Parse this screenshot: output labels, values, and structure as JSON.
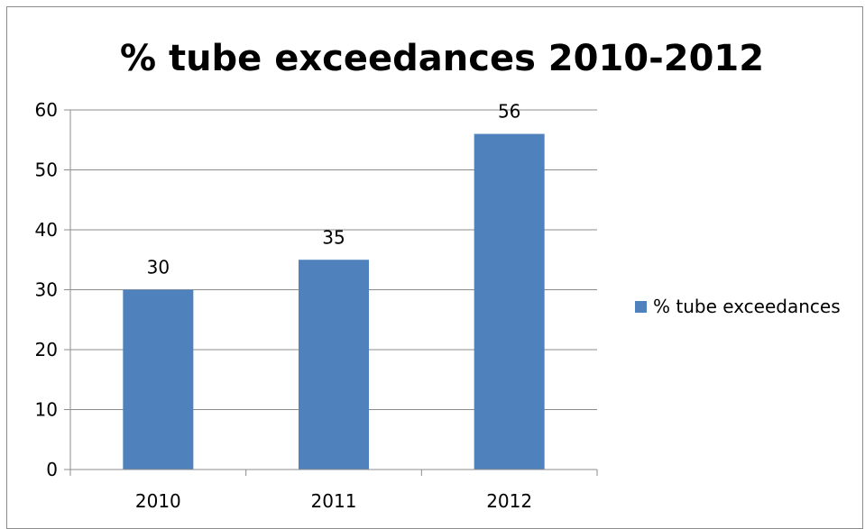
{
  "chart_data": {
    "type": "bar",
    "title": "% tube exceedances 2010-2012",
    "categories": [
      "2010",
      "2011",
      "2012"
    ],
    "series": [
      {
        "name": "% tube exceedances",
        "values": [
          30,
          35,
          56
        ],
        "color": "#4f81bd"
      }
    ],
    "data_labels": [
      "30",
      "35",
      "56"
    ],
    "y_ticks": [
      "0",
      "10",
      "20",
      "30",
      "40",
      "50",
      "60"
    ],
    "ylim": [
      0,
      60
    ],
    "xlabel": "",
    "ylabel": "",
    "grid": true,
    "legend_position": "right"
  }
}
